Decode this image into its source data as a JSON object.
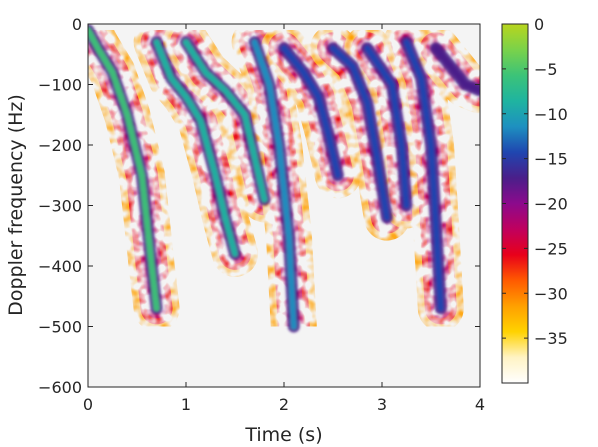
{
  "chart_data": {
    "type": "heatmap",
    "title": "",
    "xlabel": "Time (s)",
    "ylabel": "Doppler frequency (Hz)",
    "xlim": [
      0,
      4
    ],
    "ylim": [
      -600,
      0
    ],
    "x_ticks": [
      0,
      1,
      2,
      3,
      4
    ],
    "y_ticks": [
      0,
      -100,
      -200,
      -300,
      -400,
      -500,
      -600
    ],
    "colorbar": {
      "range": [
        -40,
        0
      ],
      "ticks": [
        0,
        -5,
        -10,
        -15,
        -20,
        -25,
        -30,
        -35
      ],
      "colors": [
        "#ffffff",
        "#fff3c4",
        "#ffd200",
        "#ffa000",
        "#ff5a00",
        "#e8001a",
        "#c0005e",
        "#8c0a8c",
        "#4a1f8a",
        "#1f46b0",
        "#1e90c0",
        "#1fb4a0",
        "#3cc378",
        "#7ad24a",
        "#b8d51d"
      ]
    },
    "background_color": "#f4f4f4",
    "strides": [
      {
        "x": [
          0.0,
          0.1,
          0.25,
          0.4,
          0.55,
          0.65,
          0.7
        ],
        "y": [
          -10,
          -40,
          -80,
          -150,
          -250,
          -400,
          -470
        ],
        "peak": -5
      },
      {
        "x": [
          0.7,
          0.85,
          1.0,
          1.15,
          1.3,
          1.4,
          1.5
        ],
        "y": [
          -30,
          -90,
          -120,
          -160,
          -250,
          -320,
          -380
        ],
        "peak": -9
      },
      {
        "x": [
          1.0,
          1.2,
          1.4,
          1.6,
          1.7,
          1.8
        ],
        "y": [
          -30,
          -80,
          -110,
          -150,
          -220,
          -290
        ],
        "peak": -8
      },
      {
        "x": [
          1.7,
          1.85,
          1.95,
          2.05,
          2.1
        ],
        "y": [
          -30,
          -100,
          -200,
          -350,
          -500
        ],
        "peak": -12
      },
      {
        "x": [
          2.0,
          2.2,
          2.35,
          2.45,
          2.55
        ],
        "y": [
          -40,
          -80,
          -120,
          -180,
          -250
        ],
        "peak": -14
      },
      {
        "x": [
          2.5,
          2.7,
          2.85,
          2.95,
          3.05
        ],
        "y": [
          -40,
          -70,
          -130,
          -220,
          -320
        ],
        "peak": -15
      },
      {
        "x": [
          2.85,
          3.1,
          3.2,
          3.25
        ],
        "y": [
          -40,
          -100,
          -200,
          -300
        ],
        "peak": -15
      },
      {
        "x": [
          3.25,
          3.4,
          3.5,
          3.55,
          3.6
        ],
        "y": [
          -30,
          -90,
          -200,
          -330,
          -470
        ],
        "peak": -15
      },
      {
        "x": [
          3.55,
          3.7,
          3.85,
          4.0
        ],
        "y": [
          -40,
          -70,
          -100,
          -110
        ],
        "peak": -16
      }
    ]
  }
}
